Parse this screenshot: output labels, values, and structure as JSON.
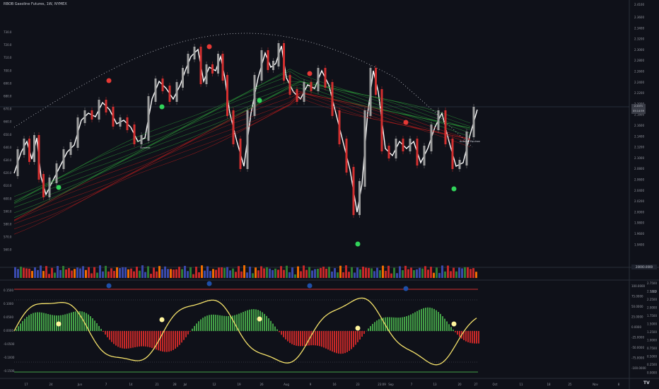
{
  "chart_title": "RBOB Gasoline Futures, 1W, NYMEX",
  "price_axis": {
    "top_label": "2.4100",
    "labels": [
      "2.3600",
      "2.3400",
      "2.3200",
      "2.3000",
      "2.2800",
      "2.2600",
      "2.2400",
      "2.2200",
      "2.2000",
      "2.1800",
      "2.1600",
      "2.1400",
      "2.1200",
      "2.1000",
      "2.0800",
      "2.0600",
      "2.0400",
      "2.0200",
      "2.0000",
      "1.9800",
      "1.9600",
      "1.9400"
    ]
  },
  "left_axis": {
    "labels": [
      "730.0",
      "720.0",
      "710.0",
      "700.0",
      "690.0",
      "680.0",
      "670.0",
      "660.0",
      "650.0",
      "640.0",
      "630.0",
      "620.0",
      "610.0",
      "600.0",
      "590.0",
      "580.0",
      "570.0",
      "560.0"
    ]
  },
  "price_badge": [
    "2.2071",
    "05:14:59"
  ],
  "volume_badge": "20000.0000",
  "osc_left_labels": [
    "0.1500",
    "0.1000",
    "0.0500",
    "0.0000",
    "-0.0500",
    "-0.1000",
    "-0.1500"
  ],
  "osc_right_labels": [
    "100.0000",
    "75.0000",
    "50.0000",
    "25.0000",
    "0.0000",
    "-25.0000",
    "-50.0000",
    "-75.0000",
    "-100.0000"
  ],
  "osc_right2_labels": [
    "2.7500",
    "2.5000",
    "2.2500",
    "2.0000",
    "1.7500",
    "1.5000",
    "1.2500",
    "1.0000",
    "0.7500",
    "0.5000",
    "0.2500",
    "0.0000"
  ],
  "osc_right_unit": "USD",
  "time_labels": [
    "17",
    "24",
    "Jun",
    "7",
    "14",
    "21",
    "28",
    "Jul",
    "12",
    "19",
    "26",
    "Aug",
    "9",
    "16",
    "23",
    "23:09",
    "Sep",
    "7",
    "13",
    "20",
    "27",
    "Oct",
    "11",
    "18",
    "25",
    "Nov",
    "8"
  ],
  "annotations": [
    "Summer",
    "Autumn Equinox"
  ],
  "colors": {
    "background": "#0f1119",
    "up": "#26a69a",
    "down": "#ef5350",
    "ribbon_green": "#2e9e3a",
    "ribbon_red": "#b71c1c",
    "price_line": "#ffffff",
    "oscillator": "#f5e26b",
    "upper_band": "#d32f2f",
    "lower_band": "#43a047",
    "marker_red": "#e53935",
    "marker_green": "#31d35a",
    "marker_blue": "#1e4fa8",
    "marker_yellow": "#fff59d"
  },
  "icons": [
    "tradingview-logo"
  ],
  "logo_text": "TV"
}
